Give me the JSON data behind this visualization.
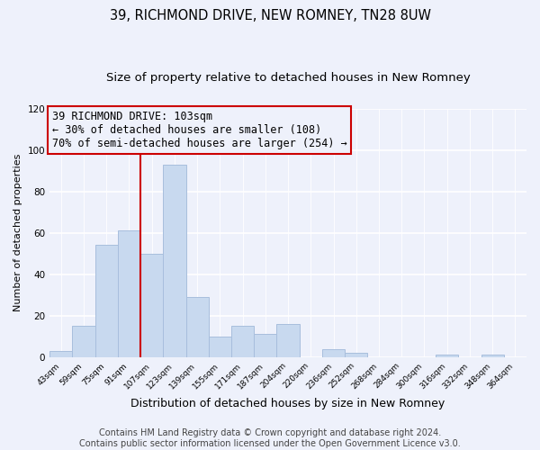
{
  "title": "39, RICHMOND DRIVE, NEW ROMNEY, TN28 8UW",
  "subtitle": "Size of property relative to detached houses in New Romney",
  "xlabel": "Distribution of detached houses by size in New Romney",
  "ylabel": "Number of detached properties",
  "categories": [
    "43sqm",
    "59sqm",
    "75sqm",
    "91sqm",
    "107sqm",
    "123sqm",
    "139sqm",
    "155sqm",
    "171sqm",
    "187sqm",
    "204sqm",
    "220sqm",
    "236sqm",
    "252sqm",
    "268sqm",
    "284sqm",
    "300sqm",
    "316sqm",
    "332sqm",
    "348sqm",
    "364sqm"
  ],
  "values": [
    3,
    15,
    54,
    61,
    50,
    93,
    29,
    10,
    15,
    11,
    16,
    0,
    4,
    2,
    0,
    0,
    0,
    1,
    0,
    1,
    0
  ],
  "bar_color": "#c8d9ef",
  "bar_edge_color": "#a8bedd",
  "vline_x_index": 4,
  "vline_color": "#cc0000",
  "annotation_line1": "39 RICHMOND DRIVE: 103sqm",
  "annotation_line2": "← 30% of detached houses are smaller (108)",
  "annotation_line3": "70% of semi-detached houses are larger (254) →",
  "box_edge_color": "#cc0000",
  "ylim": [
    0,
    120
  ],
  "yticks": [
    0,
    20,
    40,
    60,
    80,
    100,
    120
  ],
  "footer_text": "Contains HM Land Registry data © Crown copyright and database right 2024.\nContains public sector information licensed under the Open Government Licence v3.0.",
  "background_color": "#eef1fb",
  "grid_color": "#ffffff",
  "title_fontsize": 10.5,
  "subtitle_fontsize": 9.5,
  "annotation_fontsize": 8.5,
  "footer_fontsize": 7,
  "ylabel_fontsize": 8,
  "xlabel_fontsize": 9
}
